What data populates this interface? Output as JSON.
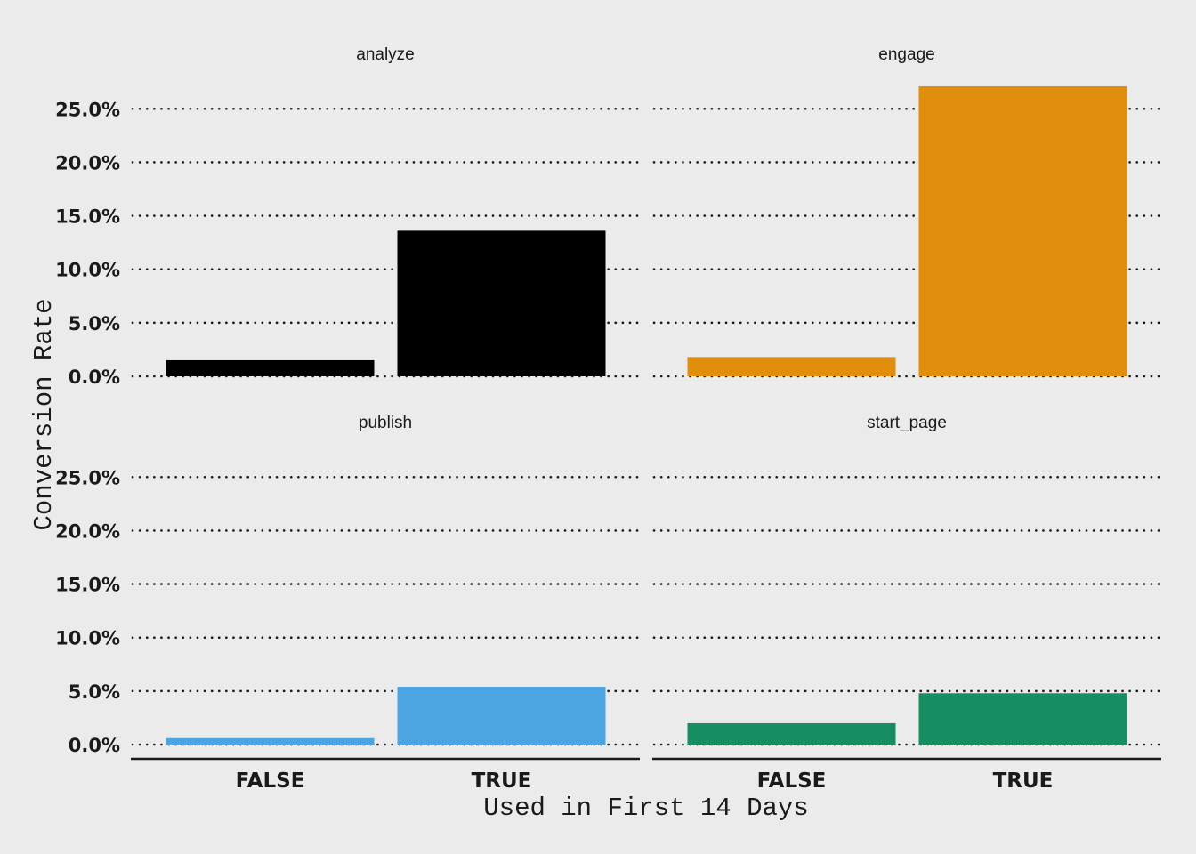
{
  "chart_data": {
    "type": "bar",
    "xlabel": "Used in First 14 Days",
    "ylabel": "Conversion Rate",
    "categories": [
      "FALSE",
      "TRUE"
    ],
    "ylim": [
      0,
      27
    ],
    "y_ticks": [
      0,
      5,
      10,
      15,
      20,
      25
    ],
    "y_tick_labels": [
      "0.0%",
      "5.0%",
      "10.0%",
      "15.0%",
      "20.0%",
      "25.0%"
    ],
    "grid": true,
    "facets": [
      {
        "title": "analyze",
        "color": "#000000",
        "values": [
          1.5,
          13.6
        ]
      },
      {
        "title": "engage",
        "color": "#E08E0B",
        "values": [
          1.8,
          27.1
        ]
      },
      {
        "title": "publish",
        "color": "#4AA5E2",
        "values": [
          0.6,
          5.4
        ]
      },
      {
        "title": "start_page",
        "color": "#168E62",
        "values": [
          2.0,
          4.8
        ]
      }
    ]
  }
}
